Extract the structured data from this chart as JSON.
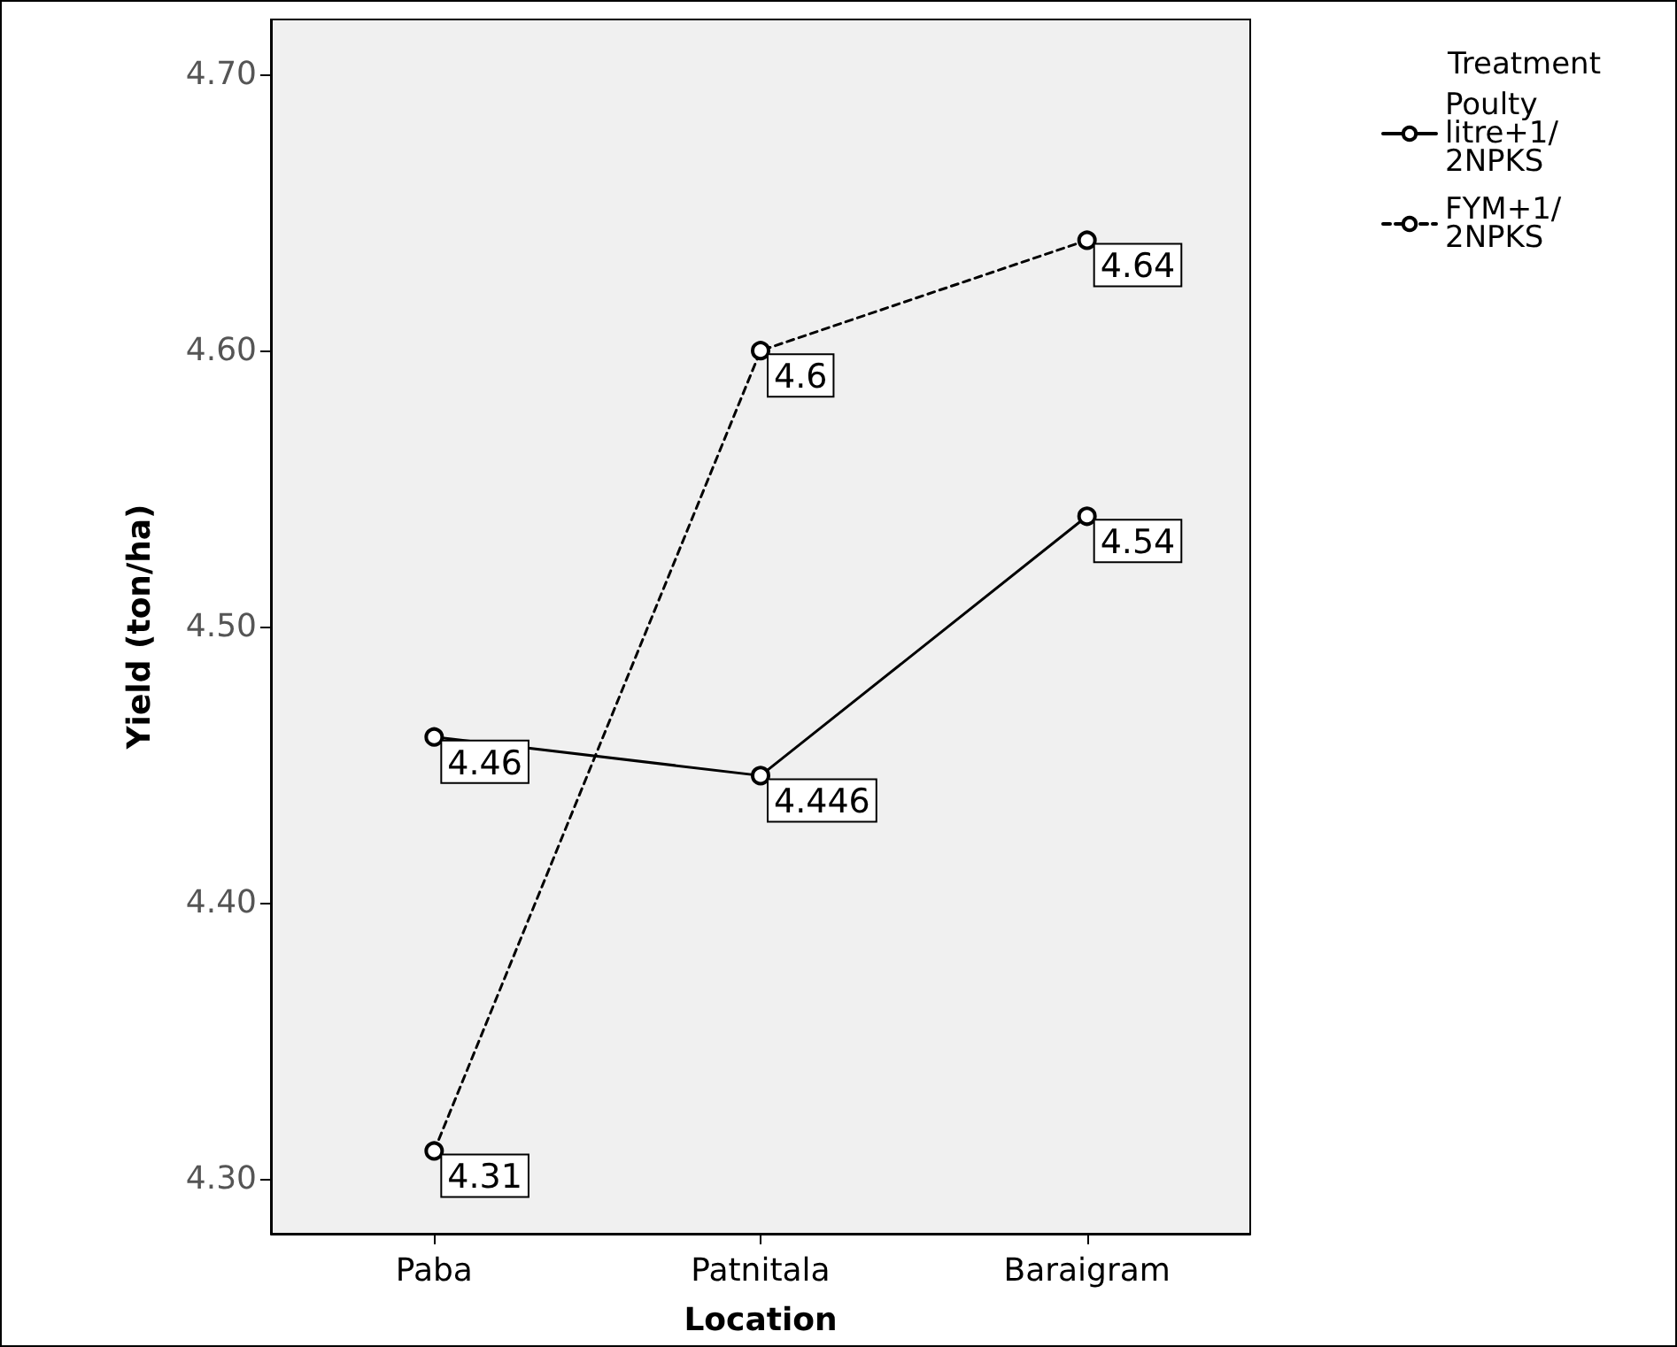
{
  "chart_data": {
    "type": "line",
    "xlabel": "Location",
    "ylabel": "Yield (ton/ha)",
    "legend_title": "Treatment",
    "categories": [
      "Paba",
      "Patnitala",
      "Baraigram"
    ],
    "series": [
      {
        "name": "Poulty litre+1/2NPKS",
        "color": "#000000",
        "line_style": "solid",
        "values": [
          4.46,
          4.446,
          4.54
        ]
      },
      {
        "name": "FYM+1/2NPKS",
        "color": "#000000",
        "line_style": "dashed",
        "values": [
          4.31,
          4.6,
          4.64
        ]
      }
    ],
    "ylim": [
      4.28,
      4.72
    ],
    "yticks": [
      {
        "value": 4.3,
        "label": "4.30"
      },
      {
        "value": 4.4,
        "label": "4.40"
      },
      {
        "value": 4.5,
        "label": "4.50"
      },
      {
        "value": 4.6,
        "label": "4.60"
      },
      {
        "value": 4.7,
        "label": "4.70"
      }
    ],
    "grid": false,
    "legend": "right",
    "marker": "circle",
    "data_labels": true
  }
}
